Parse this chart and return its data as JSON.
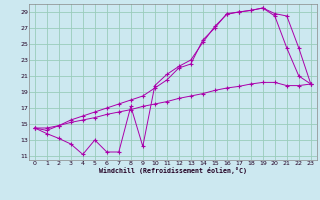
{
  "xlabel": "Windchill (Refroidissement éolien,°C)",
  "bg_color": "#cce8f0",
  "grid_color": "#99ccbb",
  "line_color": "#aa00aa",
  "xlim": [
    -0.5,
    23.5
  ],
  "ylim": [
    10.5,
    30.0
  ],
  "yticks": [
    11,
    13,
    15,
    17,
    19,
    21,
    23,
    25,
    27,
    29
  ],
  "xticks": [
    0,
    1,
    2,
    3,
    4,
    5,
    6,
    7,
    8,
    9,
    10,
    11,
    12,
    13,
    14,
    15,
    16,
    17,
    18,
    19,
    20,
    21,
    22,
    23
  ],
  "line1_x": [
    0,
    1,
    2,
    3,
    4,
    5,
    6,
    7,
    8,
    9,
    10,
    11,
    12,
    13,
    14,
    15,
    16,
    17,
    18,
    19,
    20,
    21,
    22,
    23
  ],
  "line1_y": [
    14.5,
    13.8,
    13.2,
    12.5,
    11.2,
    13.0,
    11.5,
    11.5,
    17.2,
    12.2,
    19.8,
    21.2,
    22.2,
    23.0,
    25.2,
    27.2,
    28.7,
    29.0,
    29.2,
    29.5,
    28.5,
    24.5,
    21.0,
    20.0
  ],
  "line2_x": [
    0,
    1,
    2,
    3,
    4,
    5,
    6,
    7,
    8,
    9,
    10,
    11,
    12,
    13,
    14,
    15,
    16,
    17,
    18,
    19,
    20,
    21,
    22,
    23
  ],
  "line2_y": [
    14.5,
    14.2,
    14.8,
    15.2,
    15.5,
    15.8,
    16.2,
    16.5,
    16.8,
    17.2,
    17.5,
    17.8,
    18.2,
    18.5,
    18.8,
    19.2,
    19.5,
    19.7,
    20.0,
    20.2,
    20.2,
    19.8,
    19.8,
    20.0
  ],
  "line3_x": [
    0,
    1,
    2,
    3,
    4,
    5,
    6,
    7,
    8,
    9,
    10,
    11,
    12,
    13,
    14,
    15,
    16,
    17,
    18,
    19,
    20,
    21,
    22,
    23
  ],
  "line3_y": [
    14.5,
    14.5,
    14.8,
    15.5,
    16.0,
    16.5,
    17.0,
    17.5,
    18.0,
    18.5,
    19.5,
    20.5,
    22.0,
    22.5,
    25.5,
    27.0,
    28.8,
    29.0,
    29.2,
    29.5,
    28.8,
    28.5,
    24.5,
    20.0
  ]
}
